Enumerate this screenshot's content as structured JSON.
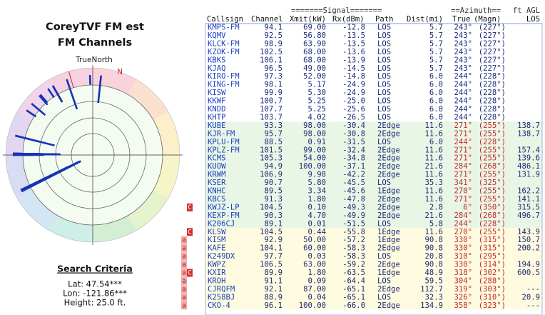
{
  "left": {
    "title": "CoreyTVF FM est",
    "subtitle": "FM Channels",
    "north_label": "TrueNorth",
    "magnetic_label": "N",
    "criteria_title": "Search Criteria",
    "lat": "Lat: 47.54***",
    "lon": "Lon: -121.86***",
    "height": "Height: 25.0 ft."
  },
  "table": {
    "group_headers": [
      "=======Signal=======",
      "==Azimuth==",
      "ft AGL"
    ],
    "columns": [
      "Callsign",
      "Channel",
      "Xmit(kW)",
      "Rx(dBm)",
      "Path",
      "Dist(mi)",
      "True",
      "(Magn)",
      "LOS"
    ],
    "sections": [
      {
        "background": "#ffffff",
        "az_color": "#1c2a78",
        "rows": [
          {
            "call": "KMPS-FM",
            "channel": 94.1,
            "xmit": "69.00",
            "rx": -12.8,
            "path": "LOS",
            "dist": 5.7,
            "true": "243°",
            "magn": "(227°)"
          },
          {
            "call": "KQMV",
            "channel": 92.5,
            "xmit": "56.80",
            "rx": -13.5,
            "path": "LOS",
            "dist": 5.7,
            "true": "243°",
            "magn": "(227°)"
          },
          {
            "call": "KLCK-FM",
            "channel": 98.9,
            "xmit": "63.90",
            "rx": -13.5,
            "path": "LOS",
            "dist": 5.7,
            "true": "243°",
            "magn": "(227°)"
          },
          {
            "call": "KZOK-FM",
            "channel": 102.5,
            "xmit": "68.00",
            "rx": -13.6,
            "path": "LOS",
            "dist": 5.7,
            "true": "243°",
            "magn": "(227°)"
          },
          {
            "call": "KBKS",
            "channel": 106.1,
            "xmit": "68.00",
            "rx": -13.9,
            "path": "LOS",
            "dist": 5.7,
            "true": "243°",
            "magn": "(227°)"
          },
          {
            "call": "KJAQ",
            "channel": 96.5,
            "xmit": "49.00",
            "rx": -14.5,
            "path": "LOS",
            "dist": 5.7,
            "true": "243°",
            "magn": "(227°)"
          },
          {
            "call": "KIRO-FM",
            "channel": 97.3,
            "xmit": "52.00",
            "rx": -14.8,
            "path": "LOS",
            "dist": 6,
            "dist_label": "6.0",
            "true": "244°",
            "magn": "(228°)"
          },
          {
            "call": "KING-FM",
            "channel": 98.1,
            "xmit": "5.17",
            "rx": -24.9,
            "path": "LOS",
            "dist": 6,
            "dist_label": "6.0",
            "true": "244°",
            "magn": "(228°)"
          },
          {
            "call": "KISW",
            "channel": 99.9,
            "xmit": "5.30",
            "rx": -24.9,
            "path": "LOS",
            "dist": 6,
            "dist_label": "6.0",
            "true": "244°",
            "magn": "(228°)"
          },
          {
            "call": "KKWF",
            "channel": 100.7,
            "xmit": "5.25",
            "rx": -25,
            "rx_label": "-25.0",
            "path": "LOS",
            "dist": 6,
            "dist_label": "6.0",
            "true": "244°",
            "magn": "(228°)"
          },
          {
            "call": "KNDD",
            "channel": 107.7,
            "xmit": "5.25",
            "rx": -25.6,
            "path": "LOS",
            "dist": 6,
            "dist_label": "6.0",
            "true": "244°",
            "magn": "(228°)"
          },
          {
            "call": "KHTP",
            "channel": 103.7,
            "xmit": "4.02",
            "rx": -26.5,
            "path": "LOS",
            "dist": 6,
            "dist_label": "6.0",
            "true": "244°",
            "magn": "(228°)"
          }
        ]
      },
      {
        "background": "#e9f6e6",
        "az_color": "#c62828",
        "rows": [
          {
            "call": "KUBE",
            "channel": 93.3,
            "xmit": "98.00",
            "rx": -30.4,
            "path": "2Edge",
            "dist": 11.6,
            "true": "271°",
            "magn": "(255°)",
            "agl": 138.7
          },
          {
            "call": "KJR-FM",
            "channel": 95.7,
            "xmit": "98.00",
            "rx": -30.8,
            "path": "2Edge",
            "dist": 11.6,
            "true": "271°",
            "magn": "(255°)",
            "agl": 138.7
          },
          {
            "call": "KPLU-FM",
            "channel": 88.5,
            "xmit": "0.91",
            "rx": -31.5,
            "path": "LOS",
            "dist": 6,
            "dist_label": "6.0",
            "true": "244°",
            "magn": "(228°)"
          },
          {
            "call": "KPLZ-FM",
            "channel": 101.5,
            "xmit": "99.00",
            "rx": -32.4,
            "path": "2Edge",
            "dist": 11.6,
            "true": "271°",
            "magn": "(255°)",
            "agl": 157.4
          },
          {
            "call": "KCMS",
            "channel": 105.3,
            "xmit": "54.00",
            "rx": -34.8,
            "path": "2Edge",
            "dist": 11.6,
            "true": "271°",
            "magn": "(255°)",
            "agl": 139.6
          },
          {
            "call": "KUOW",
            "channel": 94.9,
            "xmit": "100.00",
            "rx": -37.1,
            "path": "2Edge",
            "dist": 21.6,
            "true": "284°",
            "magn": "(268°)",
            "agl": 486.1
          },
          {
            "call": "KRWM",
            "channel": 106.9,
            "xmit": "9.98",
            "rx": -42.2,
            "path": "2Edge",
            "dist": 11.6,
            "true": "271°",
            "magn": "(255°)",
            "agl": 131.9
          },
          {
            "call": "KSER",
            "channel": 90.7,
            "xmit": "5.80",
            "rx": -45.5,
            "path": "LOS",
            "dist": 35.3,
            "true": "341°",
            "magn": "(325°)"
          },
          {
            "call": "KNHC",
            "channel": 89.5,
            "xmit": "3.34",
            "rx": -45.6,
            "path": "1Edge",
            "dist": 11.6,
            "true": "270°",
            "magn": "(255°)",
            "agl": 162.2
          },
          {
            "call": "KBCS",
            "channel": 91.3,
            "xmit": "1.80",
            "rx": -47.8,
            "path": "2Edge",
            "dist": 11.6,
            "true": "271°",
            "magn": "(255°)",
            "agl": 141.1
          },
          {
            "flags": [
              "C"
            ],
            "call": "KWJZ-LP",
            "channel": 104.5,
            "xmit": "0.10",
            "rx": -49.3,
            "path": "2Edge",
            "dist": 2.8,
            "true": "6°",
            "magn": "(350°)",
            "agl": 315.5
          },
          {
            "call": "KEXP-FM",
            "channel": 90.3,
            "xmit": "4.70",
            "rx": -49.9,
            "path": "2Edge",
            "dist": 21.6,
            "true": "284°",
            "magn": "(268°)",
            "agl": 496.7
          },
          {
            "call": "K206CJ",
            "channel": 89.1,
            "xmit": "0.01",
            "rx": -51.5,
            "path": "LOS",
            "dist": 5.8,
            "true": "244°",
            "magn": "(228°)"
          }
        ]
      },
      {
        "background": "#fffbe0",
        "az_color": "#c62828",
        "rows": [
          {
            "flags": [
              "C"
            ],
            "call": "KLSW",
            "channel": 104.5,
            "xmit": "0.44",
            "rx": -55.8,
            "path": "1Edge",
            "dist": 11.6,
            "true": "270°",
            "magn": "(255°)",
            "agl": 143.9
          },
          {
            "flags": [
              "a"
            ],
            "call": "KISM",
            "channel": 92.9,
            "xmit": "50.00",
            "rx": -57.2,
            "path": "1Edge",
            "dist": 90.8,
            "true": "330°",
            "magn": "(315°)",
            "agl": 150.7
          },
          {
            "flags": [
              "a"
            ],
            "call": "KAFE",
            "channel": 104.1,
            "xmit": "60.00",
            "rx": -58.3,
            "path": "2Edge",
            "dist": 90.8,
            "true": "330°",
            "magn": "(315°)",
            "agl": 200.2
          },
          {
            "flags": [
              "a"
            ],
            "call": "K249DX",
            "channel": 97.7,
            "xmit": "0.03",
            "rx": -58.3,
            "path": "LOS",
            "dist": 20.8,
            "true": "310°",
            "magn": "(295°)"
          },
          {
            "flags": [
              "a"
            ],
            "call": "KWPZ",
            "channel": 106.5,
            "xmit": "63.00",
            "rx": -59.2,
            "path": "2Edge",
            "dist": 90.8,
            "true": "330°",
            "magn": "(314°)",
            "agl": 194.9
          },
          {
            "flags": [
              "a",
              "C"
            ],
            "call": "KXIR",
            "channel": 89.9,
            "xmit": "1.80",
            "rx": -63.5,
            "path": "1Edge",
            "dist": 48.9,
            "true": "318°",
            "magn": "(302°)",
            "agl": 600.5
          },
          {
            "flags": [
              "a"
            ],
            "call": "KROH",
            "channel": 91.1,
            "xmit": "0.09",
            "rx": -64.4,
            "path": "LOS",
            "dist": 59.5,
            "true": "304°",
            "magn": "(288°)"
          },
          {
            "flags": [
              "a"
            ],
            "call": "CJRQFM",
            "channel": 92.1,
            "xmit": "87.00",
            "rx": -65.1,
            "path": "2Edge",
            "dist": 112.7,
            "true": "319°",
            "magn": "(303°)",
            "agl": "---"
          },
          {
            "flags": [
              "a"
            ],
            "call": "K258BJ",
            "channel": 88.9,
            "xmit": "0.04",
            "rx": -65.1,
            "path": "LOS",
            "dist": 32.3,
            "true": "326°",
            "magn": "(310°)",
            "agl": 20.9
          },
          {
            "flags": [
              "a"
            ],
            "call": "CKO-4",
            "channel": 96.1,
            "xmit": "100.00",
            "rx": -66,
            "rx_label": "-66.0",
            "path": "2Edge",
            "dist": 134.9,
            "true": "358°",
            "magn": "(323°)",
            "agl": "---"
          }
        ]
      }
    ]
  }
}
